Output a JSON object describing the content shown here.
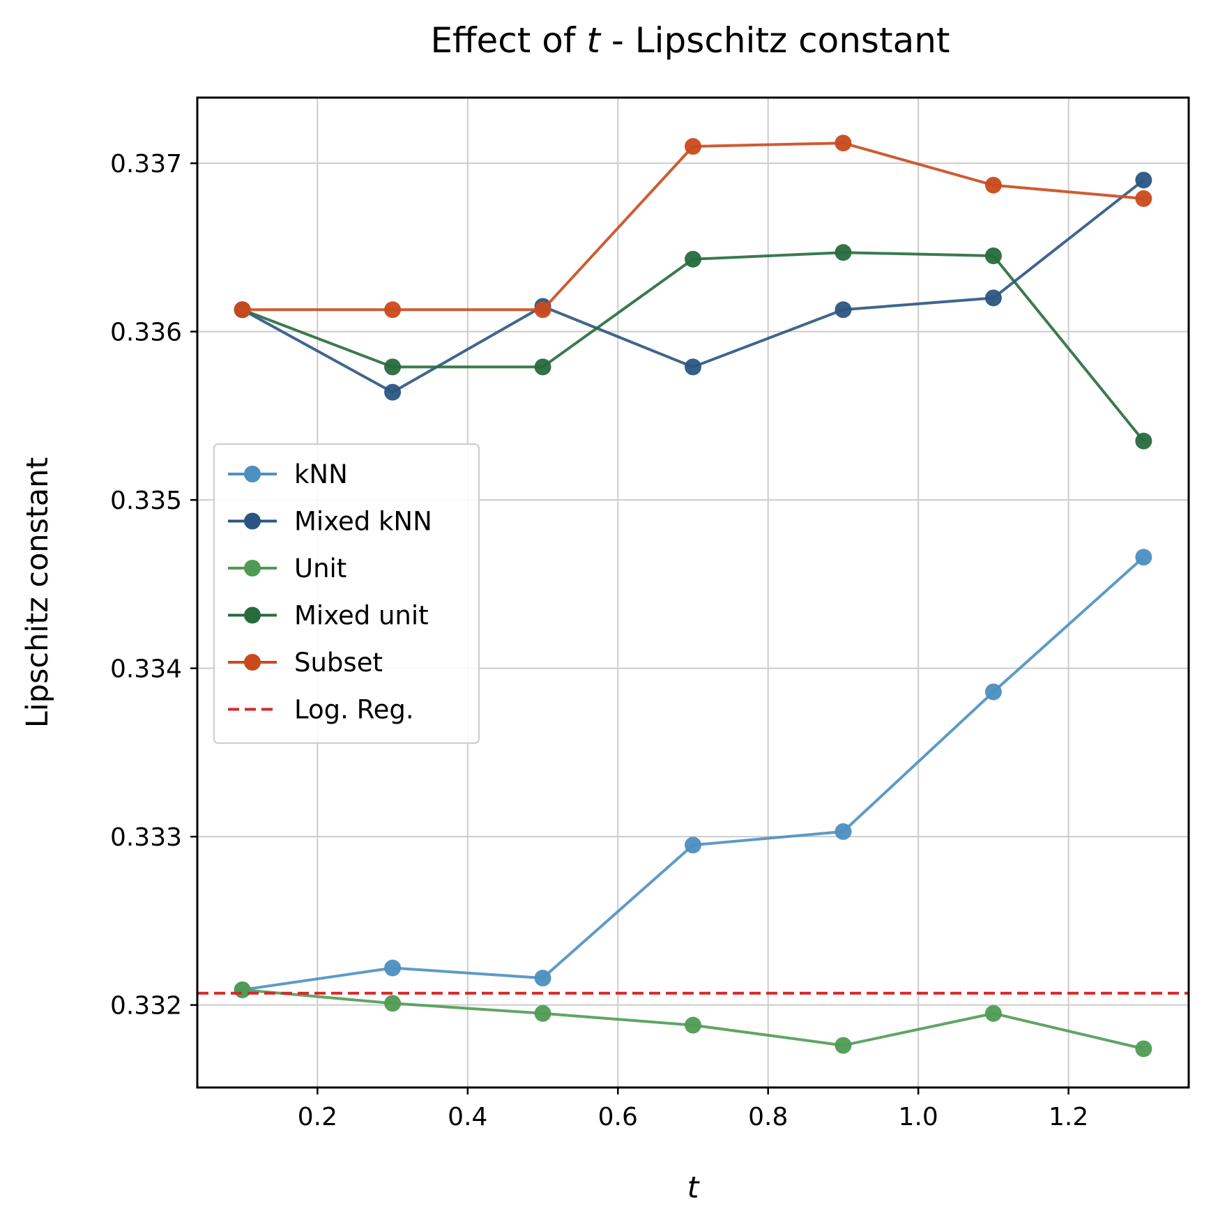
{
  "chart_data": {
    "type": "line",
    "title_prefix": "Effect of ",
    "title_var": "t",
    "title_suffix": " - Lipschitz constant",
    "xlabel": "t",
    "ylabel": "Lipschitz constant",
    "xlim": [
      0.04,
      1.36
    ],
    "ylim": [
      0.33151,
      0.33739
    ],
    "xticks": [
      0.2,
      0.4,
      0.6,
      0.8,
      1.0,
      1.2
    ],
    "xtick_labels": [
      "0.2",
      "0.4",
      "0.6",
      "0.8",
      "1.0",
      "1.2"
    ],
    "yticks": [
      0.332,
      0.333,
      0.334,
      0.335,
      0.336,
      0.337
    ],
    "ytick_labels": [
      "0.332",
      "0.333",
      "0.334",
      "0.335",
      "0.336",
      "0.337"
    ],
    "grid": true,
    "legend_position": "center-left",
    "x": [
      0.1,
      0.3,
      0.5,
      0.7,
      0.9,
      1.1,
      1.3
    ],
    "series": [
      {
        "name": "kNN",
        "color": "#4C8FC1",
        "style": "line-marker",
        "values": [
          0.33209,
          0.33222,
          0.33216,
          0.33295,
          0.33303,
          0.33386,
          0.33466
        ]
      },
      {
        "name": "Mixed kNN",
        "color": "#2A5582",
        "style": "line-marker",
        "values": [
          0.33613,
          0.33564,
          0.33615,
          0.33579,
          0.33613,
          0.3362,
          0.3369
        ]
      },
      {
        "name": "Unit",
        "color": "#4F9B53",
        "style": "line-marker",
        "values": [
          0.33209,
          0.33201,
          0.33195,
          0.33188,
          0.33176,
          0.33195,
          0.33174
        ]
      },
      {
        "name": "Mixed unit",
        "color": "#266B3C",
        "style": "line-marker",
        "values": [
          0.33613,
          0.33579,
          0.33579,
          0.33643,
          0.33647,
          0.33645,
          0.33535
        ]
      },
      {
        "name": "Subset",
        "color": "#C94A1C",
        "style": "line-marker",
        "values": [
          0.33613,
          0.33613,
          0.33613,
          0.3371,
          0.33712,
          0.33687,
          0.33679
        ]
      },
      {
        "name": "Log. Reg.",
        "color": "#D62728",
        "style": "dashed",
        "value": 0.33207
      }
    ]
  }
}
